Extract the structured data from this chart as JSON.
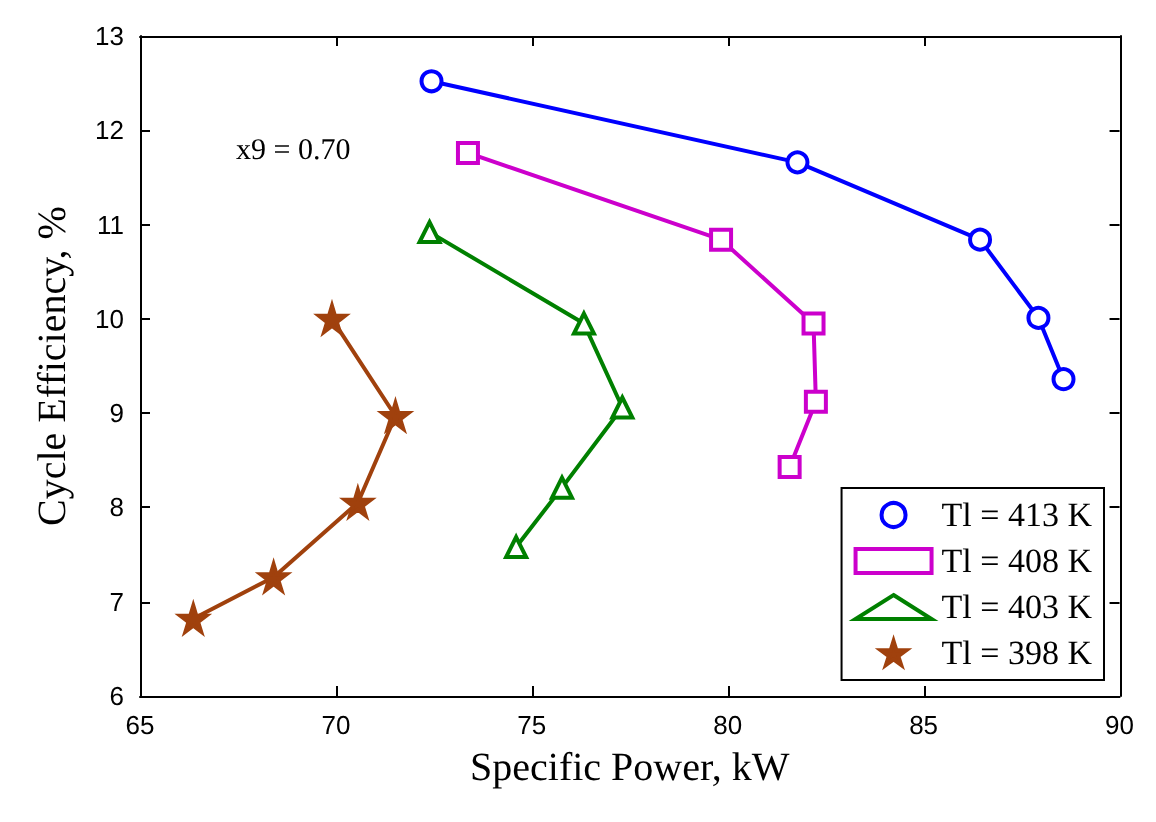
{
  "chart_data": {
    "type": "line",
    "xlabel": "Specific Power, kW",
    "ylabel": "Cycle Efficiency, %",
    "annotations": [
      "x9 = 0.70"
    ],
    "xlim": [
      65,
      90
    ],
    "xticks": [
      65,
      70,
      75,
      80,
      85,
      90
    ],
    "ylim": [
      6,
      13
    ],
    "yticks": [
      6,
      7,
      8,
      9,
      10,
      11,
      12,
      13
    ],
    "grid": false,
    "legend": "bottom right",
    "line_style": "solid",
    "series": [
      {
        "name": "Tl = 413 K",
        "color": "#0000ff",
        "marker": "circle",
        "x": [
          72.44,
          81.78,
          86.44,
          87.93,
          88.57
        ],
        "values": [
          12.52,
          11.66,
          10.84,
          10.01,
          9.36
        ]
      },
      {
        "name": "Tl = 408 K",
        "color": "#cc00cc",
        "marker": "square",
        "x": [
          73.37,
          79.83,
          82.19,
          82.25,
          81.58
        ],
        "values": [
          11.76,
          10.84,
          9.95,
          9.12,
          8.43
        ]
      },
      {
        "name": "Tl = 403 K",
        "color": "#008000",
        "marker": "triangle",
        "x": [
          72.39,
          76.33,
          77.31,
          75.77,
          74.6
        ],
        "values": [
          10.92,
          9.95,
          9.06,
          8.21,
          7.58
        ]
      },
      {
        "name": "Tl = 398 K",
        "color": "#a0410d",
        "marker": "star",
        "x": [
          69.9,
          71.52,
          70.56,
          68.41,
          66.36
        ],
        "values": [
          10.0,
          8.97,
          8.05,
          7.26,
          6.82
        ]
      }
    ]
  }
}
